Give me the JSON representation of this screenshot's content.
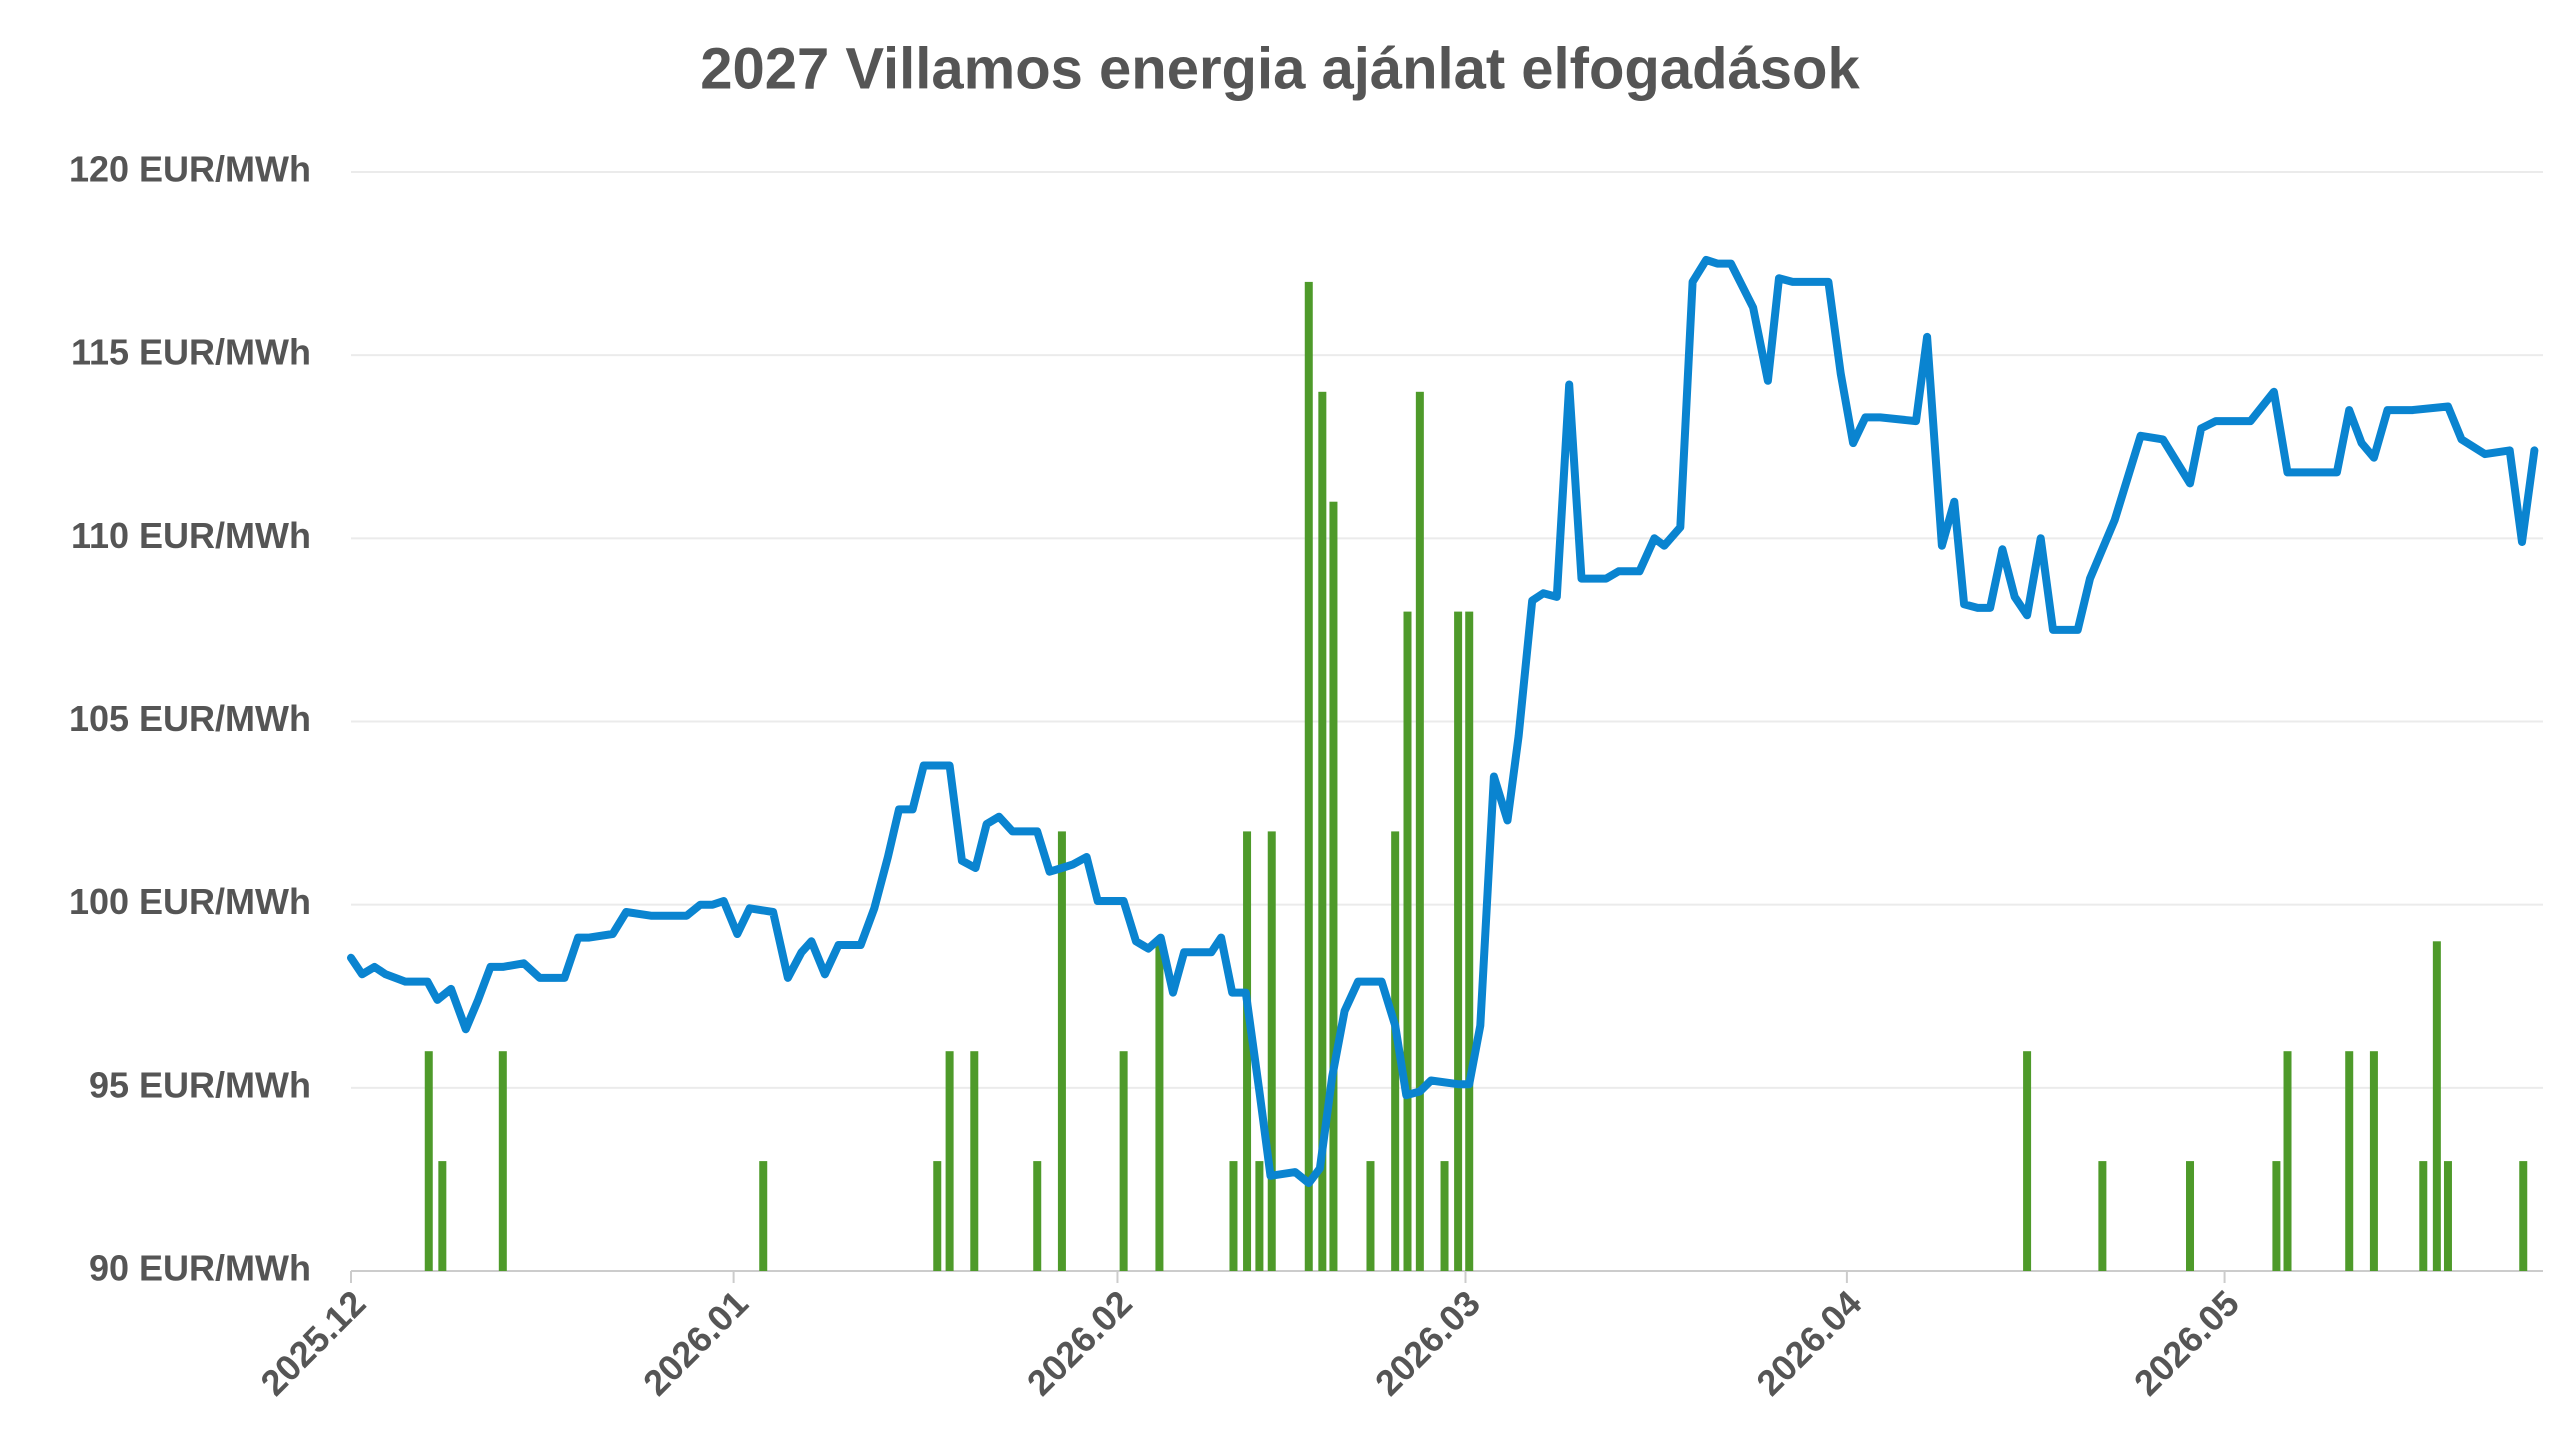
{
  "chart_data": {
    "type": "combo",
    "title": "2027 Villamos energia ajánlat elfogadások",
    "xlim": [
      0,
      177.6
    ],
    "xticks": [
      {
        "value": 0,
        "label": "2025.12"
      },
      {
        "value": 31,
        "label": "2026.01"
      },
      {
        "value": 62.1,
        "label": "2026.02"
      },
      {
        "value": 90.3,
        "label": "2026.03"
      },
      {
        "value": 121.2,
        "label": "2026.04"
      },
      {
        "value": 151.8,
        "label": "2026.05"
      }
    ],
    "ylim": [
      90,
      120
    ],
    "yticks": [
      {
        "value": 90,
        "label": "90 EUR/MWh"
      },
      {
        "value": 95,
        "label": "95 EUR/MWh"
      },
      {
        "value": 100,
        "label": "100 EUR/MWh"
      },
      {
        "value": 105,
        "label": "105 EUR/MWh"
      },
      {
        "value": 110,
        "label": "110 EUR/MWh"
      },
      {
        "value": 115,
        "label": "115 EUR/MWh"
      },
      {
        "value": 120,
        "label": "120 EUR/MWh"
      }
    ],
    "grid": true,
    "series": [
      {
        "type": "bar",
        "color": "#4e9a2a",
        "x": [
          6.3,
          7.4,
          12.3,
          33.4,
          47.5,
          48.5,
          50.5,
          55.6,
          57.6,
          62.6,
          65.5,
          71.5,
          72.6,
          73.6,
          74.6,
          77.6,
          78.7,
          79.6,
          82.6,
          84.6,
          85.6,
          86.6,
          88.6,
          89.7,
          90.6,
          135.8,
          141.9,
          149.0,
          156.0,
          156.9,
          161.9,
          163.9,
          167.9,
          169.0,
          169.9,
          176.0
        ],
        "values": [
          96,
          93,
          96,
          93,
          93,
          96,
          96,
          93,
          102,
          96,
          99,
          93,
          102,
          93,
          102,
          117,
          114,
          111,
          93,
          102,
          108,
          114,
          93,
          108,
          108,
          96,
          93,
          93,
          93,
          96,
          96,
          96,
          93,
          99,
          93,
          93
        ]
      },
      {
        "type": "line",
        "color": "#0a84d0",
        "x": [
          0,
          0.9,
          1.9,
          2.8,
          4.4,
          6.2,
          7.0,
          8.1,
          9.3,
          10.3,
          11.3,
          12.3,
          14.0,
          15.3,
          17.3,
          18.4,
          19.3,
          21.2,
          22.3,
          24.3,
          27.2,
          28.3,
          29.3,
          30.2,
          31.3,
          32.3,
          34.2,
          35.4,
          36.5,
          37.3,
          38.4,
          39.5,
          41.3,
          42.4,
          43.5,
          44.4,
          45.5,
          46.4,
          47.5,
          48.5,
          49.5,
          50.6,
          51.5,
          52.5,
          53.6,
          55.6,
          56.6,
          57.6,
          58.5,
          59.6,
          60.5,
          62.6,
          63.6,
          64.6,
          65.6,
          66.6,
          67.5,
          69.7,
          70.5,
          71.4,
          72.5,
          73.6,
          74.5,
          76.5,
          77.6,
          78.5,
          79.5,
          80.5,
          81.6,
          83.5,
          84.6,
          85.5,
          86.6,
          87.5,
          89.7,
          90.6,
          91.5,
          92.6,
          93.7,
          94.6,
          95.7,
          96.6,
          97.7,
          98.7,
          99.7,
          101.7,
          102.7,
          104.4,
          105.6,
          106.4,
          107.7,
          108.7,
          109.8,
          110.7,
          111.8,
          113.6,
          114.8,
          115.7,
          116.8,
          118.8,
          119.7,
          120.7,
          121.7,
          122.7,
          123.9,
          126.8,
          127.7,
          128.9,
          129.9,
          130.7,
          131.8,
          132.8,
          133.8,
          134.8,
          135.8,
          136.9,
          137.9,
          139.9,
          140.9,
          142.9,
          145.0,
          146.8,
          149.0,
          149.9,
          151.1,
          153.9,
          155.8,
          156.9,
          159.9,
          160.9,
          161.9,
          162.9,
          163.9,
          165.0,
          167.0,
          169.9,
          171.0,
          172.9,
          174.9,
          175.9,
          176.9
        ],
        "values": [
          98.55,
          98.1,
          98.3,
          98.1,
          97.9,
          97.9,
          97.4,
          97.7,
          96.6,
          97.4,
          98.3,
          98.3,
          98.4,
          98.0,
          98.0,
          99.1,
          99.1,
          99.2,
          99.8,
          99.7,
          99.7,
          100.0,
          100.0,
          100.1,
          99.2,
          99.9,
          99.8,
          98.0,
          98.7,
          99.0,
          98.1,
          98.9,
          98.9,
          99.9,
          101.3,
          102.6,
          102.6,
          103.8,
          103.8,
          103.8,
          101.2,
          101.0,
          102.2,
          102.4,
          102.0,
          102.0,
          100.9,
          101.0,
          101.1,
          101.3,
          100.1,
          100.1,
          99.0,
          98.8,
          99.1,
          97.6,
          98.7,
          98.7,
          99.1,
          97.6,
          97.6,
          94.9,
          92.6,
          92.7,
          92.4,
          92.8,
          95.3,
          97.1,
          97.9,
          97.9,
          96.7,
          94.8,
          94.9,
          95.2,
          95.1,
          95.1,
          96.7,
          103.5,
          102.3,
          104.6,
          108.3,
          108.5,
          108.4,
          114.2,
          108.9,
          108.9,
          109.1,
          109.1,
          110.0,
          109.8,
          110.3,
          117.0,
          117.6,
          117.5,
          117.5,
          116.3,
          114.3,
          117.1,
          117.0,
          117.0,
          117.0,
          114.5,
          112.6,
          113.3,
          113.3,
          113.2,
          115.5,
          109.8,
          111.0,
          108.2,
          108.1,
          108.1,
          109.7,
          108.4,
          107.9,
          110.0,
          107.5,
          107.5,
          108.9,
          110.5,
          112.8,
          112.7,
          111.5,
          113.0,
          113.2,
          113.2,
          114.0,
          111.8,
          111.8,
          111.8,
          113.5,
          112.6,
          112.2,
          113.5,
          113.5,
          113.6,
          112.7,
          112.3,
          112.4,
          109.9,
          112.4
        ]
      }
    ]
  }
}
